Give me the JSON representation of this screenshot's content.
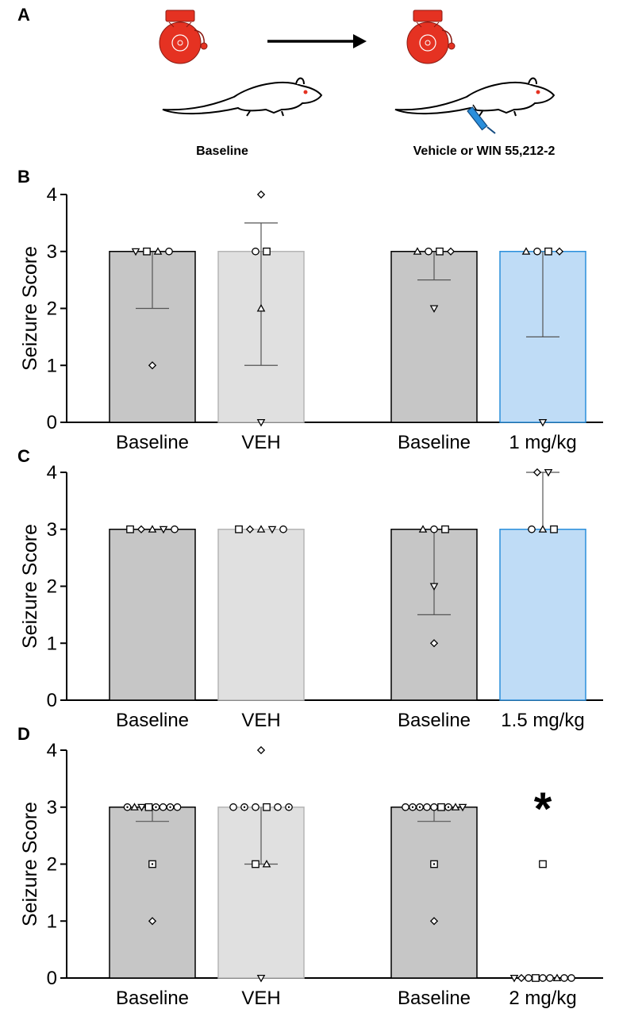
{
  "panel_a": {
    "letter": "A",
    "baseline_caption": "Baseline",
    "treatment_caption": "Vehicle or WIN 55,212-2",
    "icons": [
      "alarm-bell-icon",
      "rat-icon",
      "arrow-icon",
      "syringe-icon"
    ],
    "colors": {
      "bell": "#e53222",
      "syringe": "#2a8fdc"
    }
  },
  "colors": {
    "baseline_bar": "#c6c6c6",
    "veh_bar": "#e0e0e0",
    "drug_bar": "#bfdcf6",
    "drug_edge": "#2a8fdc"
  },
  "chart_data": [
    {
      "panel": "B",
      "type": "bar",
      "ylabel": "Seizure Score",
      "ylim": [
        0,
        4
      ],
      "yticks": [
        0,
        1,
        2,
        3,
        4
      ],
      "categories": [
        "Baseline",
        "VEH",
        "Baseline",
        "1 mg/kg"
      ],
      "values": [
        3,
        3,
        3,
        3
      ],
      "error_low": [
        2,
        1,
        2.5,
        1.5
      ],
      "error_high": [
        3,
        3.5,
        3,
        3
      ],
      "points": [
        [
          {
            "v": 3,
            "m": "tri-down"
          },
          {
            "v": 3,
            "m": "square"
          },
          {
            "v": 3,
            "m": "tri-up"
          },
          {
            "v": 3,
            "m": "circle"
          },
          {
            "v": 1,
            "m": "diamond"
          }
        ],
        [
          {
            "v": 4,
            "m": "diamond"
          },
          {
            "v": 3,
            "m": "circle"
          },
          {
            "v": 3,
            "m": "square"
          },
          {
            "v": 2,
            "m": "tri-up"
          },
          {
            "v": 0,
            "m": "tri-down"
          }
        ],
        [
          {
            "v": 3,
            "m": "tri-up"
          },
          {
            "v": 3,
            "m": "circle"
          },
          {
            "v": 3,
            "m": "square"
          },
          {
            "v": 3,
            "m": "diamond"
          },
          {
            "v": 2,
            "m": "tri-down"
          }
        ],
        [
          {
            "v": 3,
            "m": "tri-up"
          },
          {
            "v": 3,
            "m": "circle"
          },
          {
            "v": 3,
            "m": "square"
          },
          {
            "v": 3,
            "m": "diamond"
          },
          {
            "v": 0,
            "m": "tri-down"
          }
        ]
      ],
      "annotation": ""
    },
    {
      "panel": "C",
      "type": "bar",
      "ylabel": "Seizure Score",
      "ylim": [
        0,
        4
      ],
      "yticks": [
        0,
        1,
        2,
        3,
        4
      ],
      "categories": [
        "Baseline",
        "VEH",
        "Baseline",
        "1.5 mg/kg"
      ],
      "values": [
        3,
        3,
        3,
        3
      ],
      "error_low": [
        3,
        3,
        1.5,
        3
      ],
      "error_high": [
        3,
        3,
        3,
        4
      ],
      "points": [
        [
          {
            "v": 3,
            "m": "square"
          },
          {
            "v": 3,
            "m": "diamond"
          },
          {
            "v": 3,
            "m": "tri-up"
          },
          {
            "v": 3,
            "m": "tri-down"
          },
          {
            "v": 3,
            "m": "circle"
          }
        ],
        [
          {
            "v": 3,
            "m": "square"
          },
          {
            "v": 3,
            "m": "diamond"
          },
          {
            "v": 3,
            "m": "tri-up"
          },
          {
            "v": 3,
            "m": "tri-down"
          },
          {
            "v": 3,
            "m": "circle"
          }
        ],
        [
          {
            "v": 3,
            "m": "tri-up"
          },
          {
            "v": 3,
            "m": "circle"
          },
          {
            "v": 3,
            "m": "square"
          },
          {
            "v": 2,
            "m": "tri-down"
          },
          {
            "v": 1,
            "m": "diamond"
          }
        ],
        [
          {
            "v": 4,
            "m": "diamond"
          },
          {
            "v": 4,
            "m": "tri-down"
          },
          {
            "v": 3,
            "m": "circle"
          },
          {
            "v": 3,
            "m": "tri-up"
          },
          {
            "v": 3,
            "m": "square"
          }
        ]
      ],
      "annotation": ""
    },
    {
      "panel": "D",
      "type": "bar",
      "ylabel": "Seizure Score",
      "ylim": [
        0,
        4
      ],
      "yticks": [
        0,
        1,
        2,
        3,
        4
      ],
      "categories": [
        "Baseline",
        "VEH",
        "Baseline",
        "2 mg/kg"
      ],
      "values": [
        3,
        3,
        3,
        0
      ],
      "error_low": [
        2.75,
        2,
        2.75,
        0
      ],
      "error_high": [
        3,
        3,
        3,
        0
      ],
      "points": [
        [
          {
            "v": 3,
            "m": "circle-dot"
          },
          {
            "v": 3,
            "m": "tri-up"
          },
          {
            "v": 3,
            "m": "tri-down"
          },
          {
            "v": 3,
            "m": "square"
          },
          {
            "v": 3,
            "m": "circle-dot"
          },
          {
            "v": 3,
            "m": "circle"
          },
          {
            "v": 3,
            "m": "circle-dot"
          },
          {
            "v": 3,
            "m": "circle"
          },
          {
            "v": 2,
            "m": "square-dot"
          },
          {
            "v": 1,
            "m": "diamond"
          }
        ],
        [
          {
            "v": 4,
            "m": "diamond"
          },
          {
            "v": 3,
            "m": "circle"
          },
          {
            "v": 3,
            "m": "circle-dot"
          },
          {
            "v": 3,
            "m": "circle"
          },
          {
            "v": 3,
            "m": "square"
          },
          {
            "v": 3,
            "m": "circle"
          },
          {
            "v": 3,
            "m": "circle-dot"
          },
          {
            "v": 2,
            "m": "square"
          },
          {
            "v": 2,
            "m": "tri-up"
          },
          {
            "v": 0,
            "m": "tri-down"
          }
        ],
        [
          {
            "v": 3,
            "m": "circle"
          },
          {
            "v": 3,
            "m": "circle-dot"
          },
          {
            "v": 3,
            "m": "circle-dot"
          },
          {
            "v": 3,
            "m": "circle"
          },
          {
            "v": 3,
            "m": "circle"
          },
          {
            "v": 3,
            "m": "square"
          },
          {
            "v": 3,
            "m": "circle-dot"
          },
          {
            "v": 3,
            "m": "tri-up"
          },
          {
            "v": 3,
            "m": "tri-down"
          },
          {
            "v": 2,
            "m": "square-dot"
          },
          {
            "v": 1,
            "m": "diamond"
          }
        ],
        [
          {
            "v": 2,
            "m": "square"
          },
          {
            "v": 0,
            "m": "tri-down"
          },
          {
            "v": 0,
            "m": "diamond"
          },
          {
            "v": 0,
            "m": "circle"
          },
          {
            "v": 0,
            "m": "square"
          },
          {
            "v": 0,
            "m": "circle"
          },
          {
            "v": 0,
            "m": "circle"
          },
          {
            "v": 0,
            "m": "tri-up"
          },
          {
            "v": 0,
            "m": "circle"
          },
          {
            "v": 0,
            "m": "circle"
          }
        ]
      ],
      "annotation": "*"
    }
  ]
}
